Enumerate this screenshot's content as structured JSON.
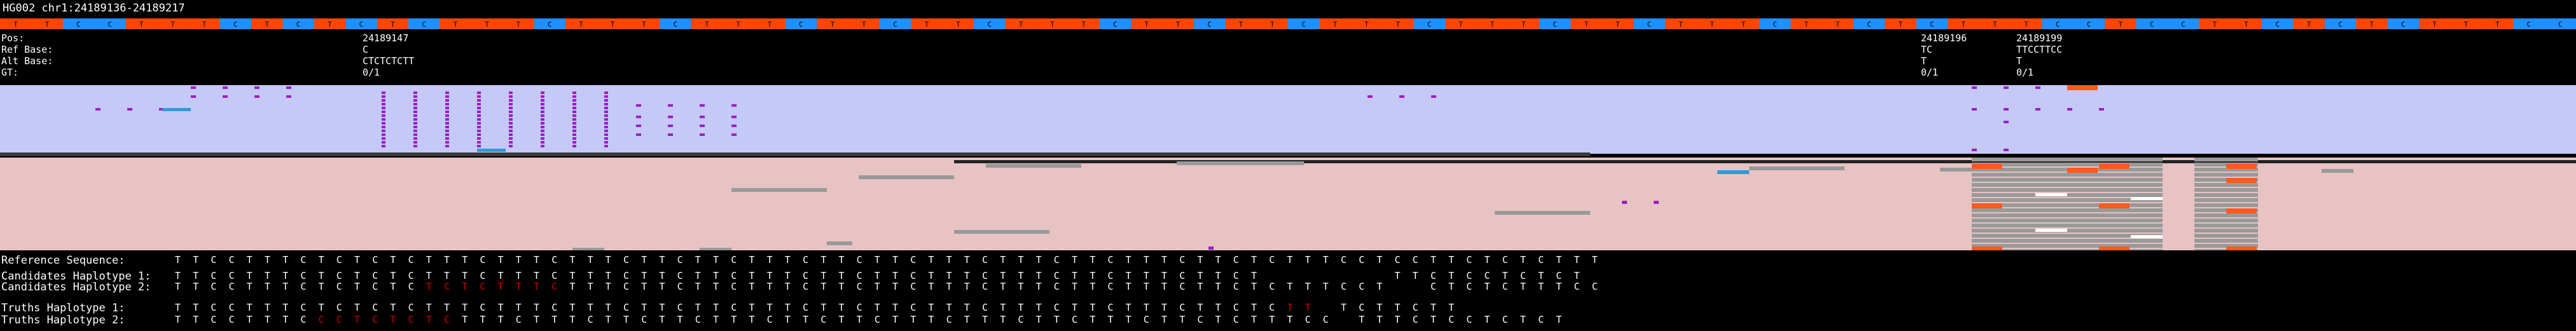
{
  "title": "HG002 chr1:24189136-24189217",
  "colors": {
    "ref_T": "#ff4500",
    "ref_C": "#1e90ff",
    "coverage_bg": "#c5c9f7",
    "reads_bg": "#e8c3c3",
    "read_grey": "#999999",
    "insertion": "#9b1ec8",
    "mismatch": "#ff5a1f",
    "strip_blue": "#2f9bd8",
    "haplo_text": "#ffffff",
    "haplo_variant": "#cc0000"
  },
  "reference_sequence": "TTCCTTTCTCTCTCTTTCTTTCTTTCTTCTTCTTTCTTCTTCTTTCTTTCTTCTTTCTTCTCTTTCCTCCTTCTCTCTTTCC",
  "variant_header": {
    "labels": [
      "Pos:",
      "Ref Base:",
      "Alt Base:",
      "GT:"
    ],
    "variants": [
      {
        "pos": "24189147",
        "ref": "C",
        "alt": "CTCTCTCTT",
        "gt": "0/1"
      },
      {
        "pos": "24189196",
        "ref": "TC",
        "alt": "T",
        "gt": "0/1"
      },
      {
        "pos": "24189199",
        "ref": "TTCCTTCC",
        "alt": "T",
        "gt": "0/1"
      }
    ]
  },
  "haplotypes": [
    {
      "label": "Reference Sequence:",
      "seq": "TTCCTTTCTCTCTCTTTCTTTCTTTCTTCTTCTTTCTTCTTCTTTCTTTCTTCTTTCTTCTCTTTCCTCCTTCTCTCTTT",
      "variant_cols": []
    },
    {
      "label": "Candidates Haplotype 1:",
      "seq": "TTCCTTTCTCTCTCTTTCTTTCTTTCTTCTTCTTTCTTCTTCTTTCTTTCTTCTTTCTTCT       TTCTCCTCTCT",
      "variant_cols": []
    },
    {
      "label": "Candidates Haplotype 2:",
      "seq": "TTCCTTTCTCTCTCTCTCTTTCTTTCTTCTTCTTTCTTCTTCTTTCTTTCTTCTTTCTTCTCTTTCCT  CTCTCTTTCC",
      "variant_cols": [
        14,
        15,
        16,
        17,
        18,
        19,
        20,
        21
      ]
    },
    {
      "label": "Truths Haplotype 1:",
      "seq": "TTCCTTTCTCTCTCTTTCTTTCTTTCTTCTTCTTTCTTCTTCTTTCTTTCTTCTTTCTTCTCTT TCTTCTT",
      "variant_cols": [
        62,
        63
      ]
    },
    {
      "label": "Truths Haplotype 2:",
      "seq": "TTCCTTTCCCTCTCTCTTTCTTTCTTCTTCTTTCTTCTTCTTTCTTTCTTCTTTCTTCTCTTTCC TTTCTCCTCTCT",
      "variant_cols": [
        8,
        9,
        10,
        11,
        12,
        13,
        14,
        15
      ]
    }
  ]
}
